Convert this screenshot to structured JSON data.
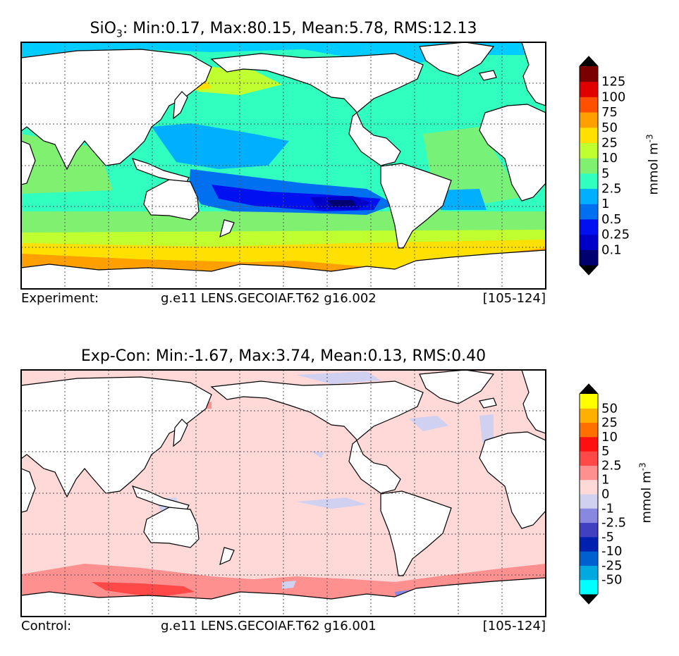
{
  "panels": [
    {
      "title_main": "SiO",
      "title_sub": "3",
      "title_rest": ": Min:0.17, Max:80.15, Mean:5.78, RMS:12.13",
      "footer_left": "Experiment:",
      "footer_center": "g.e11 LENS.GECOIAF.T62 g16.002",
      "footer_right": "[105-124]",
      "unit": "mmol m",
      "unit_exp": "-3"
    },
    {
      "title": "Exp-Con: Min:-1.67, Max:3.74, Mean:0.13, RMS:0.40",
      "footer_left": "Control:",
      "footer_center": "g.e11 LENS.GECOIAF.T62 g16.001",
      "footer_right": "[105-124]",
      "unit": "mmol m",
      "unit_exp": "-3"
    }
  ],
  "chart_data": [
    {
      "type": "heatmap",
      "variable": "SiO3",
      "stats": {
        "min": 0.17,
        "max": 80.15,
        "mean": 5.78,
        "rms": 12.13
      },
      "colorbar": {
        "labels": [
          "0.1",
          "0.25",
          "0.5",
          "1",
          "2.5",
          "5",
          "10",
          "25",
          "50",
          "75",
          "100",
          "125"
        ],
        "colors": [
          "#000070",
          "#0000c8",
          "#0010f0",
          "#0070f0",
          "#00b0ff",
          "#30ffc0",
          "#80f070",
          "#c0ff30",
          "#ffe000",
          "#ffa000",
          "#ff5000",
          "#e00000",
          "#7a0000"
        ],
        "extend": "both"
      },
      "grid": true
    },
    {
      "type": "heatmap",
      "variable": "Exp-Con",
      "stats": {
        "min": -1.67,
        "max": 3.74,
        "mean": 0.13,
        "rms": 0.4
      },
      "colorbar": {
        "labels": [
          "-50",
          "-25",
          "-10",
          "-5",
          "-2.5",
          "-1",
          "0",
          "1",
          "2.5",
          "5",
          "10",
          "25",
          "50"
        ],
        "colors": [
          "#00ffff",
          "#00aae0",
          "#0060d0",
          "#0020b0",
          "#4040c0",
          "#8888e0",
          "#d0d0f0",
          "#ffd8d8",
          "#ff9090",
          "#ff4848",
          "#ff1010",
          "#ff7000",
          "#ffb000",
          "#ffff00"
        ],
        "extend": "both"
      },
      "grid": true
    }
  ]
}
